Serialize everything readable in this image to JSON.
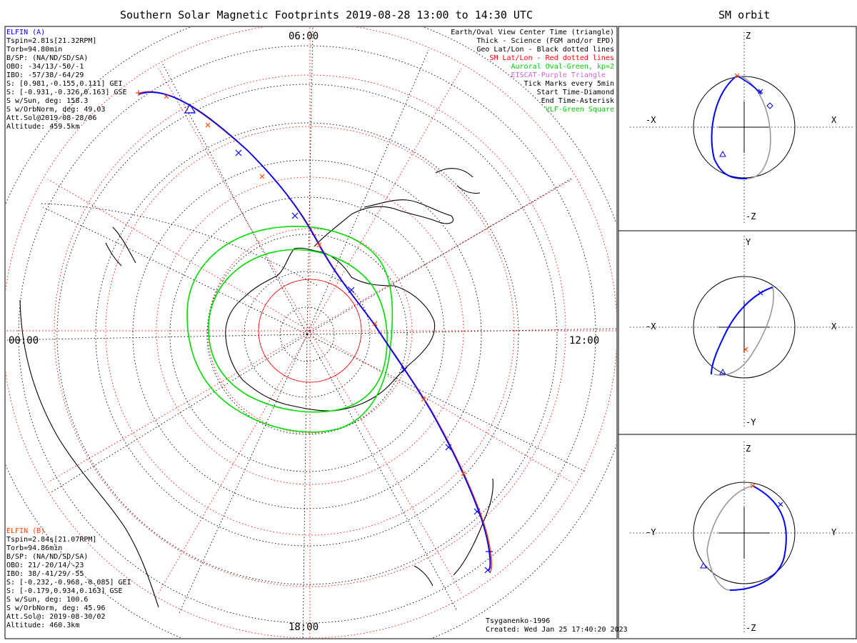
{
  "title": "Southern Solar Magnetic Footprints 2019-08-28 13:00 to 14:30 UTC",
  "orbit_title": "SM orbit",
  "clock_labels": {
    "top": "06:00",
    "left": "00:00",
    "right": "12:00",
    "bottom": "18:00"
  },
  "sat_a": {
    "name": "ELFIN (A)",
    "color": "#0000ff",
    "lines": [
      "Tspin=2.81s[21.32RPM]",
      "Torb=94.80min",
      "B/SP: (NA/ND/SD/SA)",
      "OBO: -34/13/-50/-1",
      "IBO: -57/38/-64/29",
      "S: [0.981,-0.155,0.111] GEI",
      "S: [-0.931,-0.326,0.163] GSE",
      "S w/Sun, deg: 158.3",
      "S w/OrbNorm, deg: 49.03",
      "Att.Sol@2019-08-28/06",
      "Altitude: 459.5km"
    ]
  },
  "sat_b": {
    "name": "ELFIN (B)",
    "color": "#ff4500",
    "lines": [
      "Tspin=2.84s[21.07RPM]",
      "Torb=94.86min",
      "B/SP: (NA/ND/SD/SA)",
      "OBO: 21/-20/14/-23",
      "IBO: 38/-41/29/-55",
      "S: [-0.232,-0.968,-0.085] GEI",
      "S: [-0.179,0.934,0.163] GSE",
      "S w/Sun, deg: 100.6",
      "S w/OrbNorm, deg: 45.96",
      "Att.Sol@: 2019-08-30/02",
      "Altitude: 460.3km"
    ]
  },
  "legend": [
    {
      "text": "Earth/Oval View Center Time (triangle)",
      "color": "#000000"
    },
    {
      "text": "Thick - Science (FGM and/or EPD)",
      "color": "#000000"
    },
    {
      "text": "Geo Lat/Lon - Black dotted lines",
      "color": "#000000"
    },
    {
      "text": "SM Lat/Lon - Red dotted lines",
      "color": "#ff0000"
    },
    {
      "text": "Auroral Oval-Green, kp=2",
      "color": "#00cc00"
    },
    {
      "text": "EISCAT-Purple Triangle",
      "color": "#cc66cc"
    },
    {
      "text": "Tick Marks every 5min",
      "color": "#000000"
    },
    {
      "text": "Start Time-Diamond",
      "color": "#000000"
    },
    {
      "text": "End Time-Asterisk",
      "color": "#000000"
    },
    {
      "text": "VLF-Green Square",
      "color": "#00cc00"
    }
  ],
  "credit": {
    "model": "Tsyganenko-1996",
    "created": "Created: Wed Jan 25 17:40:20 2023"
  },
  "orbit_panels": [
    {
      "left": "-X",
      "right": "X",
      "top": "Z",
      "bottom": "-Z"
    },
    {
      "left": "-X",
      "right": "X",
      "top": "Y",
      "bottom": "-Y"
    },
    {
      "left": "-Y",
      "right": "Y",
      "top": "Z",
      "bottom": "-Z"
    }
  ],
  "colors": {
    "track_a": "#0000ff",
    "track_b": "#ff4500",
    "oval": "#00dd00",
    "sm_grid": "#ff0000",
    "geo_grid": "#000000",
    "orbit_ref": "#999999"
  }
}
